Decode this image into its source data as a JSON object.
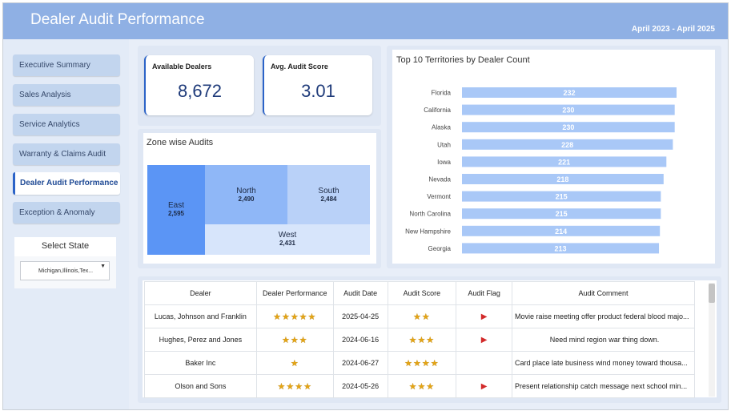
{
  "header": {
    "title": "Dealer Audit Performance",
    "date_range": "April 2023 - April 2025",
    "accent": "#8fb0e4"
  },
  "sidebar": {
    "items": [
      {
        "label": "Executive Summary",
        "active": false
      },
      {
        "label": "Sales Analysis",
        "active": false
      },
      {
        "label": "Service Analytics",
        "active": false
      },
      {
        "label": "Warranty & Claims Audit",
        "active": false
      },
      {
        "label": "Dealer Audit Performance",
        "active": true
      },
      {
        "label": "Exception & Anomaly",
        "active": false
      }
    ],
    "state_filter": {
      "title": "Select State",
      "value": "Michigan,Illinois,Tex...",
      "icon": "chevron-down-icon"
    }
  },
  "kpis": [
    {
      "label": "Available Dealers",
      "value": "8,672"
    },
    {
      "label": "Avg. Audit Score",
      "value": "3.01"
    }
  ],
  "zone_chart": {
    "title": "Zone wise Audits",
    "zones": [
      {
        "name": "East",
        "value": "2,595",
        "color": "#5b95f5"
      },
      {
        "name": "North",
        "value": "2,490",
        "color": "#8fb7f7"
      },
      {
        "name": "South",
        "value": "2,484",
        "color": "#b9d1f8"
      },
      {
        "name": "West",
        "value": "2,431",
        "color": "#d7e5fb"
      }
    ]
  },
  "chart_data": {
    "type": "bar",
    "title": "Top 10 Territories by Dealer Count",
    "orientation": "horizontal",
    "categories": [
      "Florida",
      "California",
      "Alaska",
      "Utah",
      "Iowa",
      "Nevada",
      "Vermont",
      "North Carolina",
      "New Hampshire",
      "Georgia"
    ],
    "values": [
      232,
      230,
      230,
      228,
      221,
      218,
      215,
      215,
      214,
      213
    ],
    "bar_color": "#a9c8f7",
    "label_color": "#ffffff"
  },
  "table": {
    "columns": [
      "Dealer",
      "Dealer Performance",
      "Audit Date",
      "Audit Score",
      "Audit Flag",
      "Audit Comment"
    ],
    "rows": [
      {
        "dealer": "Lucas, Johnson and Franklin",
        "performance": "★★★★★",
        "date": "2025-04-25",
        "score": "★★",
        "flag": "▶",
        "comment": "Movie raise meeting offer product federal blood majo..."
      },
      {
        "dealer": "Hughes, Perez and Jones",
        "performance": "★★★",
        "date": "2024-06-16",
        "score": "★★★",
        "flag": "▶",
        "comment": "Need mind region war thing down."
      },
      {
        "dealer": "Baker Inc",
        "performance": "★",
        "date": "2024-06-27",
        "score": "★★★★",
        "flag": "",
        "comment": "Card place late business wind money toward thousa..."
      },
      {
        "dealer": "Olson and Sons",
        "performance": "★★★★",
        "date": "2024-05-26",
        "score": "★★★",
        "flag": "▶",
        "comment": "Present relationship catch message next school min..."
      }
    ]
  }
}
